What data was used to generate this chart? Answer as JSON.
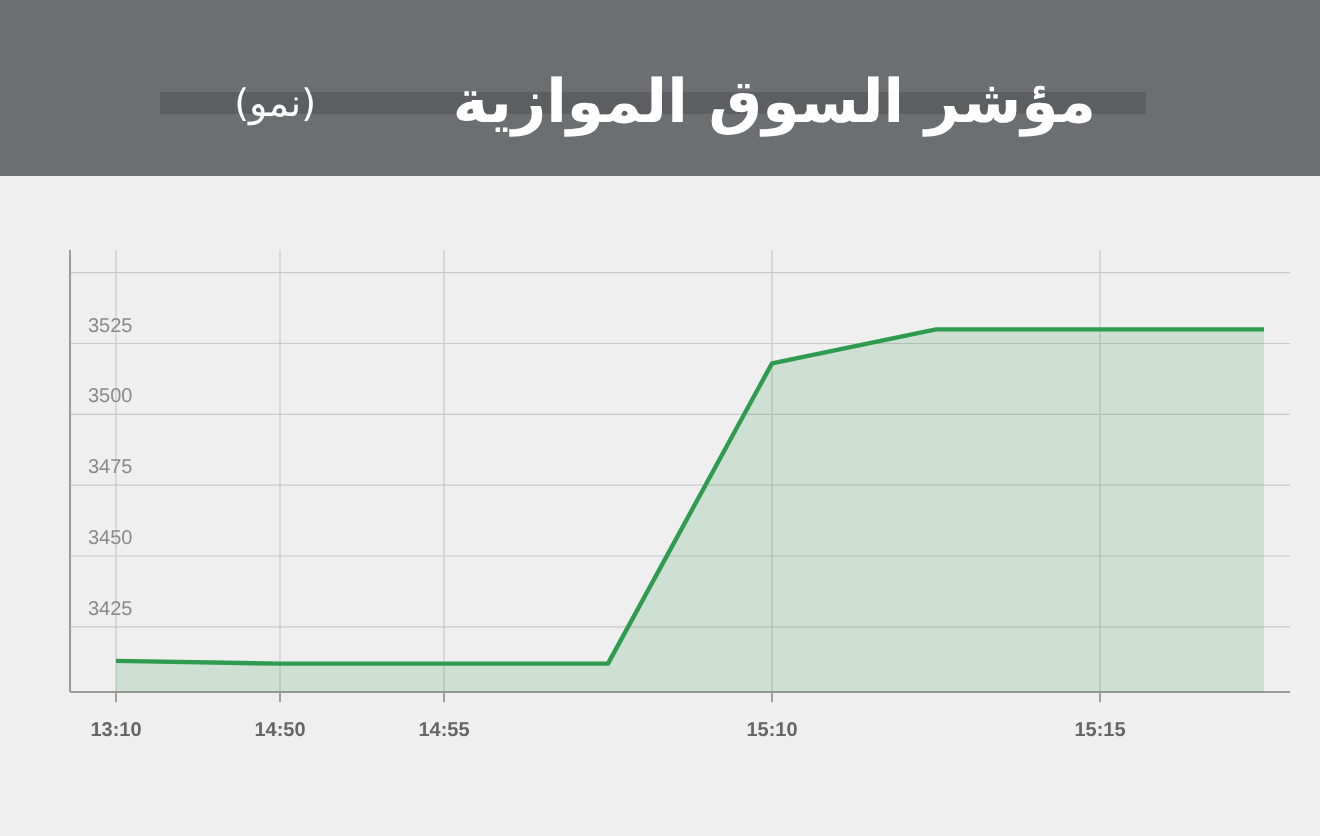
{
  "chart_data": {
    "type": "area",
    "title": "مؤشر السوق الموازية",
    "subtitle": "(نمو)",
    "categories": [
      "13:10",
      "14:50",
      "14:55",
      null,
      "15:10",
      null,
      "15:15",
      null
    ],
    "series": [
      {
        "color": "#2e9b4f",
        "values": [
          3413,
          3412,
          3412,
          3412,
          3518,
          3530,
          3530,
          3530
        ]
      }
    ],
    "ylim": [
      3402,
      3558
    ],
    "yticks": [
      3425,
      3450,
      3475,
      3500,
      3525,
      {
        "value": 3550,
        "label": null
      }
    ],
    "grid": true
  }
}
